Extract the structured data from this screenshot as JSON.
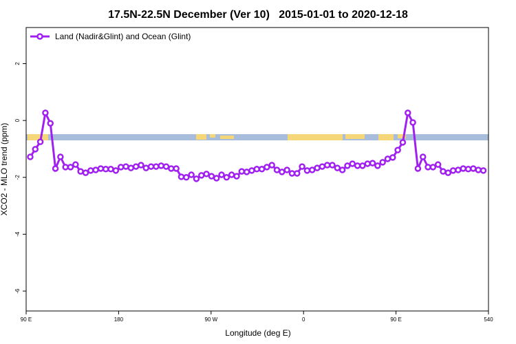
{
  "chart_data": {
    "type": "line",
    "title": "17.5N-22.5N December (Ver 10)   2015-01-01 to 2020-12-18",
    "xlabel": "Longitude (deg E)",
    "ylabel": "XCO2 - MLO trend (ppm)",
    "x": [
      94,
      98.9,
      103.8,
      108.7,
      113.6,
      118.5,
      123.4,
      128.3,
      133.2,
      138.1,
      143,
      147.9,
      152.8,
      157.7,
      162.6,
      167.5,
      172.4,
      177.3,
      182.2,
      187.1,
      192,
      196.9,
      201.8,
      206.7,
      211.6,
      216.5,
      221.4,
      226.3,
      231.2,
      236.1,
      241,
      245.9,
      250.8,
      255.7,
      260.6,
      265.5,
      270.4,
      275.3,
      280.2,
      285.1,
      290,
      294.9,
      299.8,
      304.7,
      309.6,
      314.5,
      319.4,
      324.3,
      329.2,
      334.1,
      339,
      343.9,
      348.8,
      353.7,
      358.6,
      363.5,
      368.4,
      373.3,
      378.2,
      383.1,
      388,
      392.9,
      397.8,
      402.7,
      407.6,
      412.5,
      417.4,
      422.3,
      427.2,
      432.1,
      437,
      441.9,
      446.8,
      451.7,
      456.6,
      461.5,
      466.4,
      471.3,
      476.2,
      481.1,
      486,
      490.9,
      495.8,
      500.7,
      505.6,
      510.5,
      515.4,
      520.3,
      525.2,
      530.1,
      535
    ],
    "series": [
      {
        "name": "Land (Nadir&Glint) and Ocean (Glint)",
        "color": "#a020f0",
        "values": [
          -1.28,
          -1.01,
          -0.75,
          0.27,
          -0.1,
          -1.69,
          -1.28,
          -1.64,
          -1.64,
          -1.55,
          -1.79,
          -1.84,
          -1.76,
          -1.74,
          -1.69,
          -1.71,
          -1.71,
          -1.76,
          -1.64,
          -1.62,
          -1.67,
          -1.62,
          -1.57,
          -1.67,
          -1.62,
          -1.62,
          -1.59,
          -1.62,
          -1.69,
          -1.69,
          -1.98,
          -2.0,
          -1.91,
          -2.05,
          -1.93,
          -1.88,
          -1.96,
          -2.03,
          -1.91,
          -2.0,
          -1.91,
          -1.96,
          -1.79,
          -1.81,
          -1.76,
          -1.71,
          -1.71,
          -1.64,
          -1.57,
          -1.74,
          -1.81,
          -1.74,
          -1.86,
          -1.86,
          -1.62,
          -1.76,
          -1.74,
          -1.67,
          -1.62,
          -1.57,
          -1.57,
          -1.67,
          -1.74,
          -1.59,
          -1.52,
          -1.59,
          -1.59,
          -1.52,
          -1.5,
          -1.59,
          -1.47,
          -1.35,
          -1.3,
          -1.04,
          -0.77,
          0.27,
          -0.07,
          -1.69,
          -1.28,
          -1.64,
          -1.64,
          -1.55,
          -1.79,
          -1.84,
          -1.76,
          -1.74,
          -1.69,
          -1.71,
          -1.69,
          -1.74,
          -1.76
        ]
      }
    ],
    "xlim": [
      90,
      540
    ],
    "xticks": [
      {
        "value": 90,
        "label": "90 E"
      },
      180,
      {
        "value": 270,
        "label": "90 W"
      },
      {
        "value": 360,
        "label": "0"
      },
      {
        "value": 450,
        "label": "90 E"
      },
      540
    ],
    "ylim": [
      -6.7,
      3.27
    ],
    "yticks": [
      2,
      0,
      -2,
      -4,
      -6
    ],
    "legend": "upper left"
  }
}
